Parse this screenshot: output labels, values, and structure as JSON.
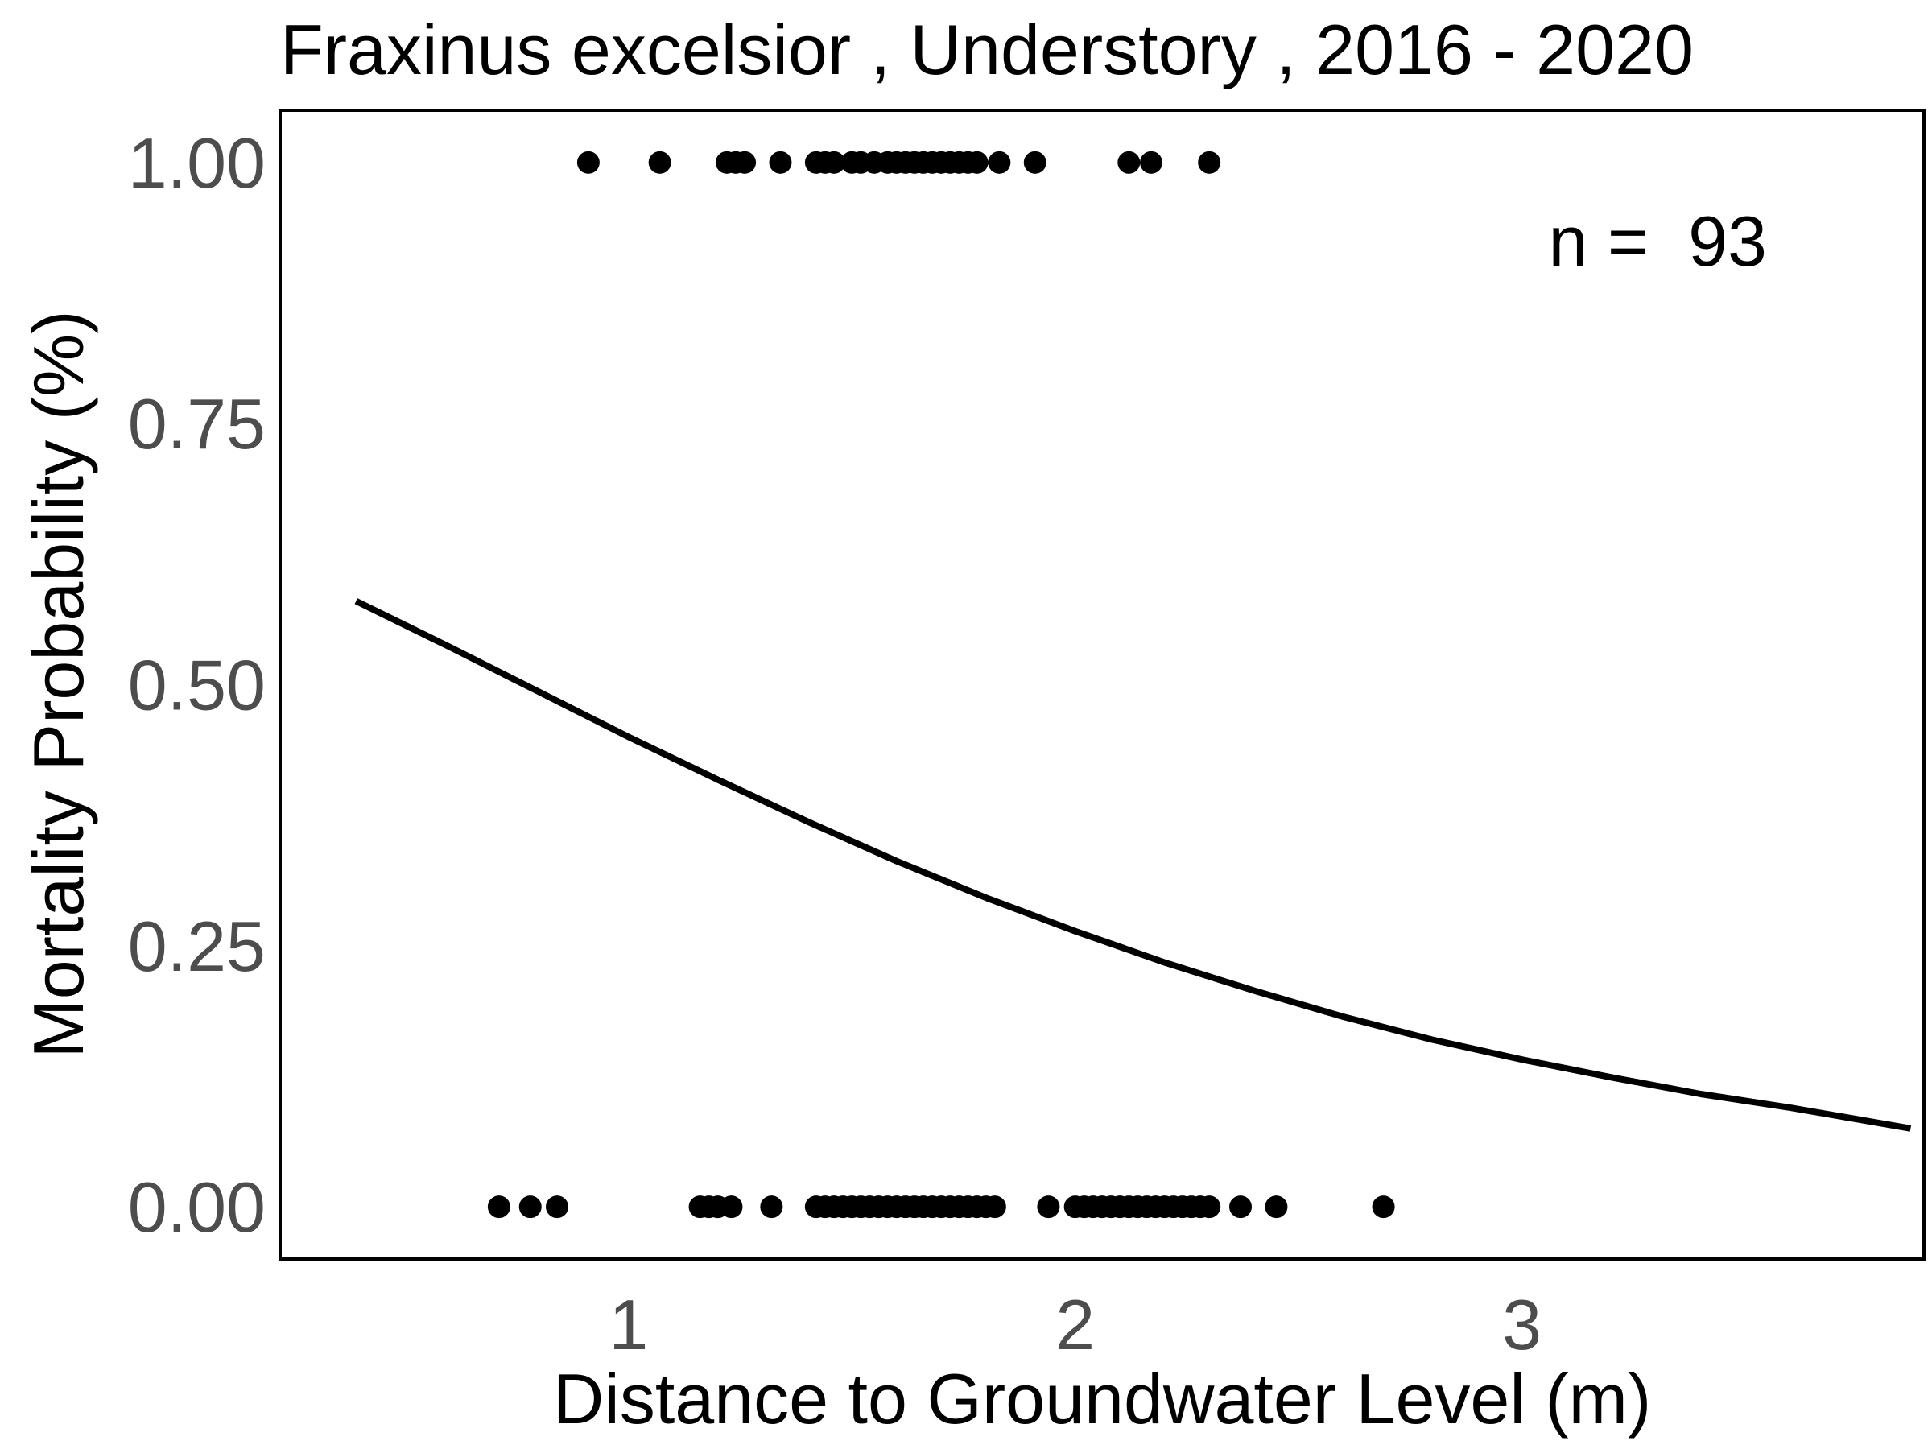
{
  "chart_data": {
    "type": "scatter",
    "title": "Fraxinus excelsior , Understory , 2016 - 2020",
    "xlabel": "Distance to Groundwater Level (m)",
    "ylabel": "Mortality Probability (%)",
    "xlim": [
      0.22,
      3.9
    ],
    "ylim": [
      -0.05,
      1.05
    ],
    "x_ticks": [
      1,
      2,
      3
    ],
    "x_tick_labels": [
      "1",
      "2",
      "3"
    ],
    "y_ticks": [
      0,
      0.25,
      0.5,
      0.75,
      1
    ],
    "y_tick_labels": [
      "0.00",
      "0.25",
      "0.50",
      "0.75",
      "1.00"
    ],
    "grid": false,
    "annotation": "n =  93",
    "colors": {
      "points": "#000000",
      "curve": "#000000",
      "frame": "#000000",
      "tick_text": "#4d4d4d"
    },
    "series": [
      {
        "type": "scatter",
        "points_y1_x": [
          0.91,
          1.07,
          1.22,
          1.24,
          1.26,
          1.34,
          1.42,
          1.44,
          1.46,
          1.5,
          1.52,
          1.55,
          1.58,
          1.6,
          1.62,
          1.64,
          1.66,
          1.68,
          1.7,
          1.72,
          1.74,
          1.76,
          1.78,
          1.83,
          1.91,
          2.12,
          2.17,
          2.3
        ],
        "points_y0_x": [
          0.71,
          0.78,
          0.84,
          1.16,
          1.18,
          1.2,
          1.23,
          1.32,
          1.42,
          1.44,
          1.46,
          1.48,
          1.5,
          1.52,
          1.54,
          1.56,
          1.58,
          1.6,
          1.62,
          1.64,
          1.66,
          1.68,
          1.7,
          1.72,
          1.74,
          1.76,
          1.78,
          1.8,
          1.82,
          1.94,
          2.0,
          2.02,
          2.04,
          2.06,
          2.08,
          2.1,
          2.12,
          2.14,
          2.16,
          2.18,
          2.2,
          2.22,
          2.24,
          2.26,
          2.28,
          2.3,
          2.37,
          2.45,
          2.69
        ]
      },
      {
        "type": "line",
        "x": [
          0.39,
          0.6,
          0.8,
          1.0,
          1.2,
          1.4,
          1.6,
          1.8,
          2.0,
          2.2,
          2.4,
          2.6,
          2.8,
          3.0,
          3.2,
          3.4,
          3.6,
          3.87
        ],
        "y": [
          0.58,
          0.536,
          0.493,
          0.45,
          0.409,
          0.369,
          0.331,
          0.296,
          0.264,
          0.234,
          0.207,
          0.182,
          0.16,
          0.141,
          0.124,
          0.108,
          0.095,
          0.075
        ]
      }
    ]
  }
}
